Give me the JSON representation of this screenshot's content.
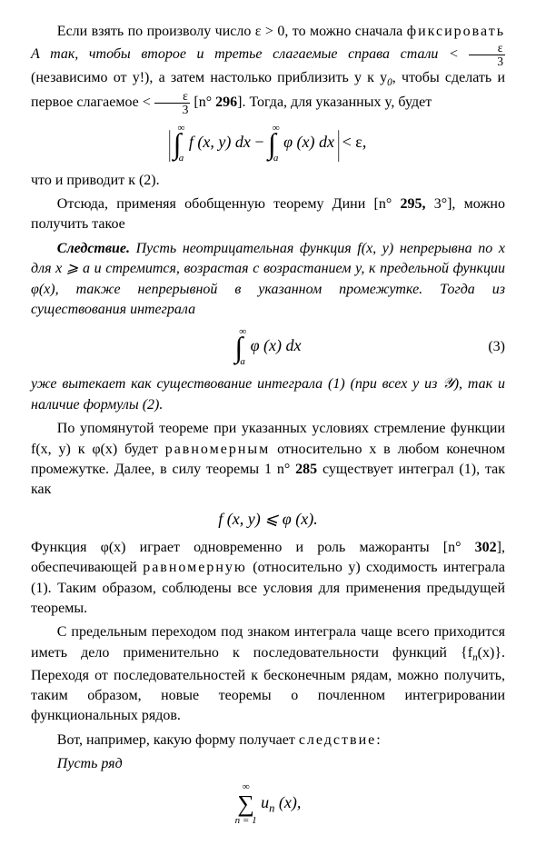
{
  "p1_a": "Если взять по произволу число ε > 0, то можно сначала ",
  "p1_b": "фиксировать",
  "p1_c": " A так, чтобы второе и третье слагаемые справа стали < ",
  "p1_d": " (независимо от y!), а затем настолько приблизить y к y",
  "p1_d2": ", чтобы сделать и первое слагаемое < ",
  "p1_e": " [n° ",
  "p1_ref1": "296",
  "p1_f": "]. Тогда, для указанных y, будет",
  "p2": "что и приводит к (2).",
  "p3_a": "Отсюда, применяя обобщенную теорему Дини [n° ",
  "p3_ref": "295,",
  "p3_b": " 3°], можно получить такое",
  "p4_lead": "Следствие.",
  "p4_body": " Пусть неотрицательная функция f(x, y) непрерывна по x для x ⩾ a и стремится, возрастая с возрастанием y, к предельной функции φ(x), также непрерывной в указанном промежутке. Тогда из существования интеграла",
  "eq3_no": "(3)",
  "p5": "уже вытекает как существование интеграла (1) (при всех y из 𝒴), так и наличие формулы (2).",
  "p6_a": "По упомянутой теореме при указанных условиях стремление функции f(x, y) к φ(x) будет ",
  "p6_spaced": "равномерным",
  "p6_b": " относительно x в любом конечном промежутке. Далее, в силу теоремы 1 n° ",
  "p6_ref": "285",
  "p6_c": " существует интеграл (1), так как",
  "ineq": "f (x, y) ⩽ φ (x).",
  "p7_a": "Функция φ(x) играет одновременно и роль мажоранты [n° ",
  "p7_ref": "302",
  "p7_b": "], обеспечивающей ",
  "p7_spaced": "равномерную",
  "p7_c": " (относительно y) сходимость интеграла (1). Таким образом, соблюдены все условия для применения предыдущей теоремы.",
  "p8_a": "С предельным переходом под знаком интеграла чаще всего приходится иметь дело применительно к последовательности функций {f",
  "p8_b": "(x)}. Переходя от последовательностей к бесконечным рядам, можно получить, таким образом, новые теоремы о почленном интегрировании функциональных рядов.",
  "p9_a": "Вот, например, какую форму получает ",
  "p9_spaced": "следствие:",
  "p10": "Пусть ряд"
}
